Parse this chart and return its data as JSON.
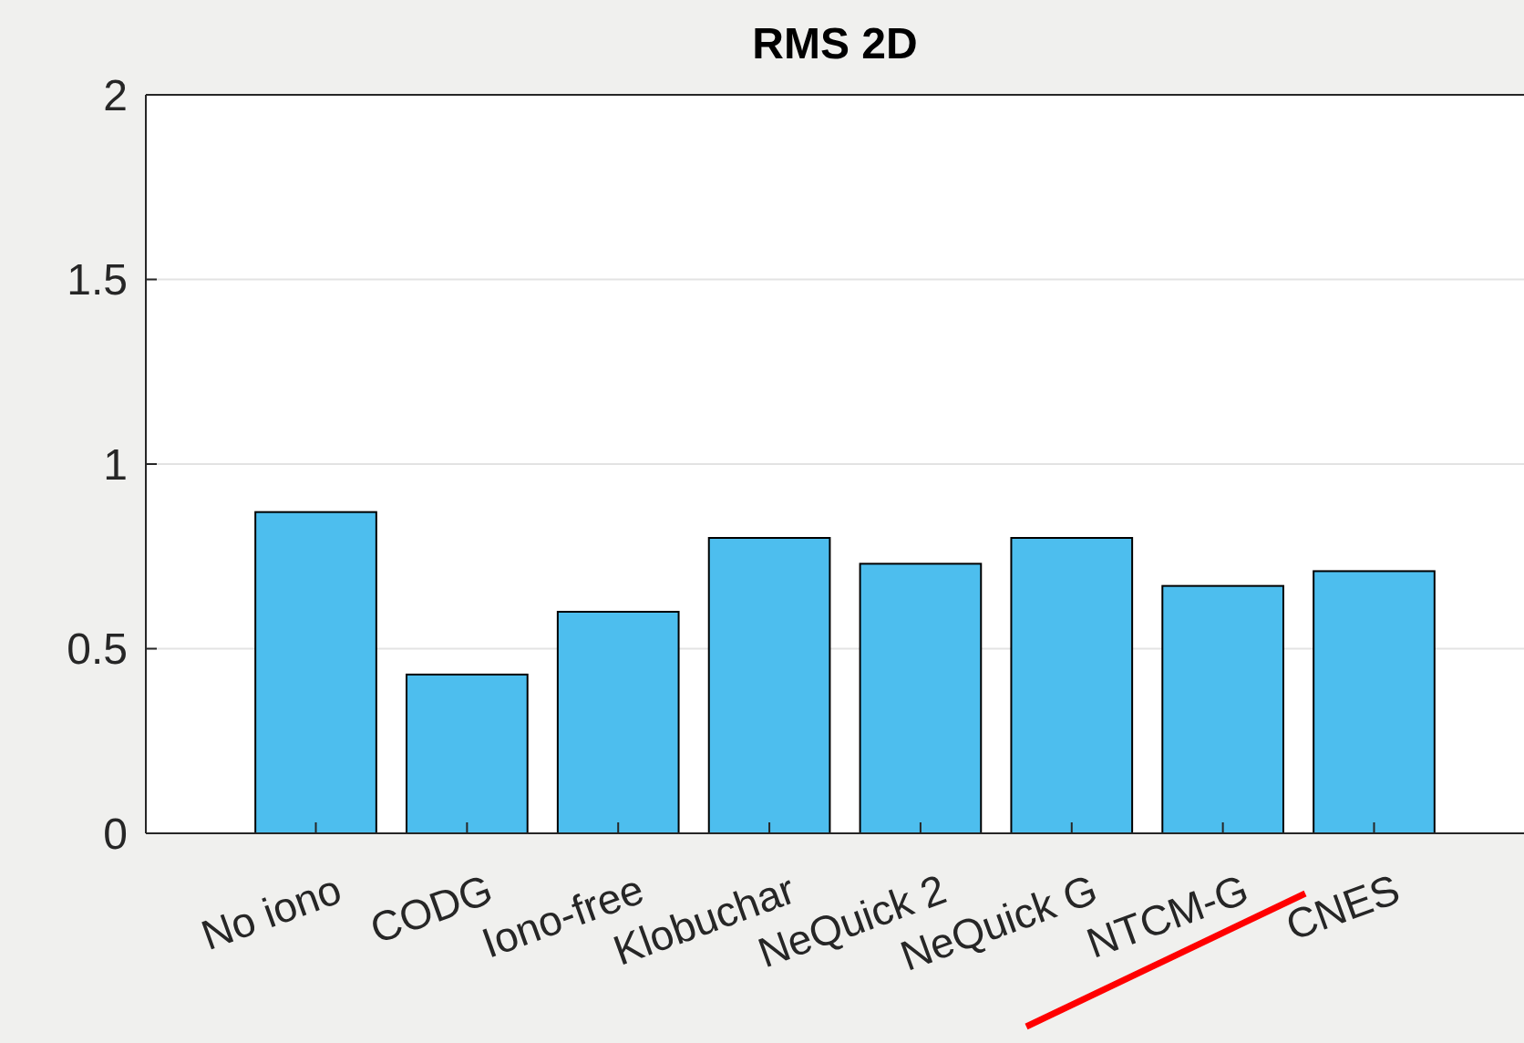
{
  "chart_data": {
    "type": "bar",
    "title": "RMS 2D",
    "categories": [
      "No iono",
      "CODG",
      "Iono-free",
      "Klobuchar",
      "NeQuick 2",
      "NeQuick G",
      "NTCM-G",
      "CNES"
    ],
    "values": [
      0.87,
      0.43,
      0.6,
      0.8,
      0.73,
      0.8,
      0.67,
      0.71
    ],
    "color": "#4dbeee",
    "ylim": [
      0,
      2
    ],
    "yticks": [
      0,
      0.5,
      1,
      1.5,
      2
    ],
    "grid": "y"
  }
}
